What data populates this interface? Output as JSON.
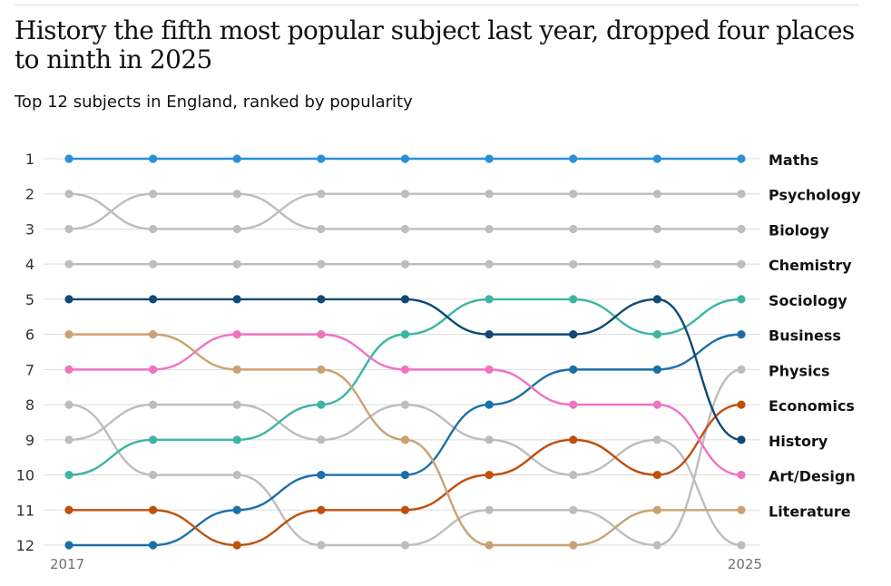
{
  "title": "History the fifth most popular subject last year, dropped four places to ninth in 2025",
  "subtitle": "Top 12 subjects in England, ranked by popularity",
  "chart_data": {
    "type": "line",
    "subtype": "bump",
    "x": [
      2017,
      2018,
      2019,
      2020,
      2021,
      2022,
      2023,
      2024,
      2025
    ],
    "x_tick_labels": [
      "2017",
      "2025"
    ],
    "y_tick_labels": [
      "1",
      "2",
      "3",
      "4",
      "5",
      "6",
      "7",
      "8",
      "9",
      "10",
      "11",
      "12"
    ],
    "ylim": [
      1,
      12
    ],
    "y_inverted": true,
    "grid": true,
    "series": [
      {
        "name": "Maths",
        "values": [
          1,
          1,
          1,
          1,
          1,
          1,
          1,
          1,
          1
        ],
        "color": "#2b8fd6"
      },
      {
        "name": "Psychology",
        "values": [
          2,
          3,
          3,
          2,
          2,
          2,
          2,
          2,
          2
        ],
        "color": "#bdbdbd"
      },
      {
        "name": "Biology",
        "values": [
          3,
          2,
          2,
          3,
          3,
          3,
          3,
          3,
          3
        ],
        "color": "#bdbdbd"
      },
      {
        "name": "Chemistry",
        "values": [
          4,
          4,
          4,
          4,
          4,
          4,
          4,
          4,
          4
        ],
        "color": "#bdbdbd"
      },
      {
        "name": "Sociology",
        "values": [
          10,
          9,
          9,
          8,
          6,
          5,
          5,
          6,
          5
        ],
        "color": "#3db5a5"
      },
      {
        "name": "Business",
        "values": [
          12,
          12,
          11,
          10,
          10,
          8,
          7,
          7,
          6
        ],
        "color": "#1b70a8"
      },
      {
        "name": "Physics",
        "values": [
          8,
          10,
          10,
          12,
          12,
          11,
          11,
          12,
          7
        ],
        "color": "#bdbdbd"
      },
      {
        "name": "Economics",
        "values": [
          11,
          11,
          12,
          11,
          11,
          10,
          9,
          10,
          8
        ],
        "color": "#c0500c"
      },
      {
        "name": "History",
        "values": [
          5,
          5,
          5,
          5,
          5,
          6,
          6,
          5,
          9
        ],
        "color": "#0d4a75"
      },
      {
        "name": "Art/Design",
        "values": [
          7,
          7,
          6,
          6,
          7,
          7,
          8,
          8,
          10
        ],
        "color": "#ee73c0"
      },
      {
        "name": "Literature",
        "values": [
          6,
          6,
          7,
          7,
          9,
          12,
          12,
          11,
          11
        ],
        "color": "#c9a273"
      },
      {
        "name": "",
        "values": [
          9,
          8,
          8,
          9,
          8,
          9,
          10,
          9,
          12
        ],
        "color": "#bdbdbd"
      }
    ]
  }
}
